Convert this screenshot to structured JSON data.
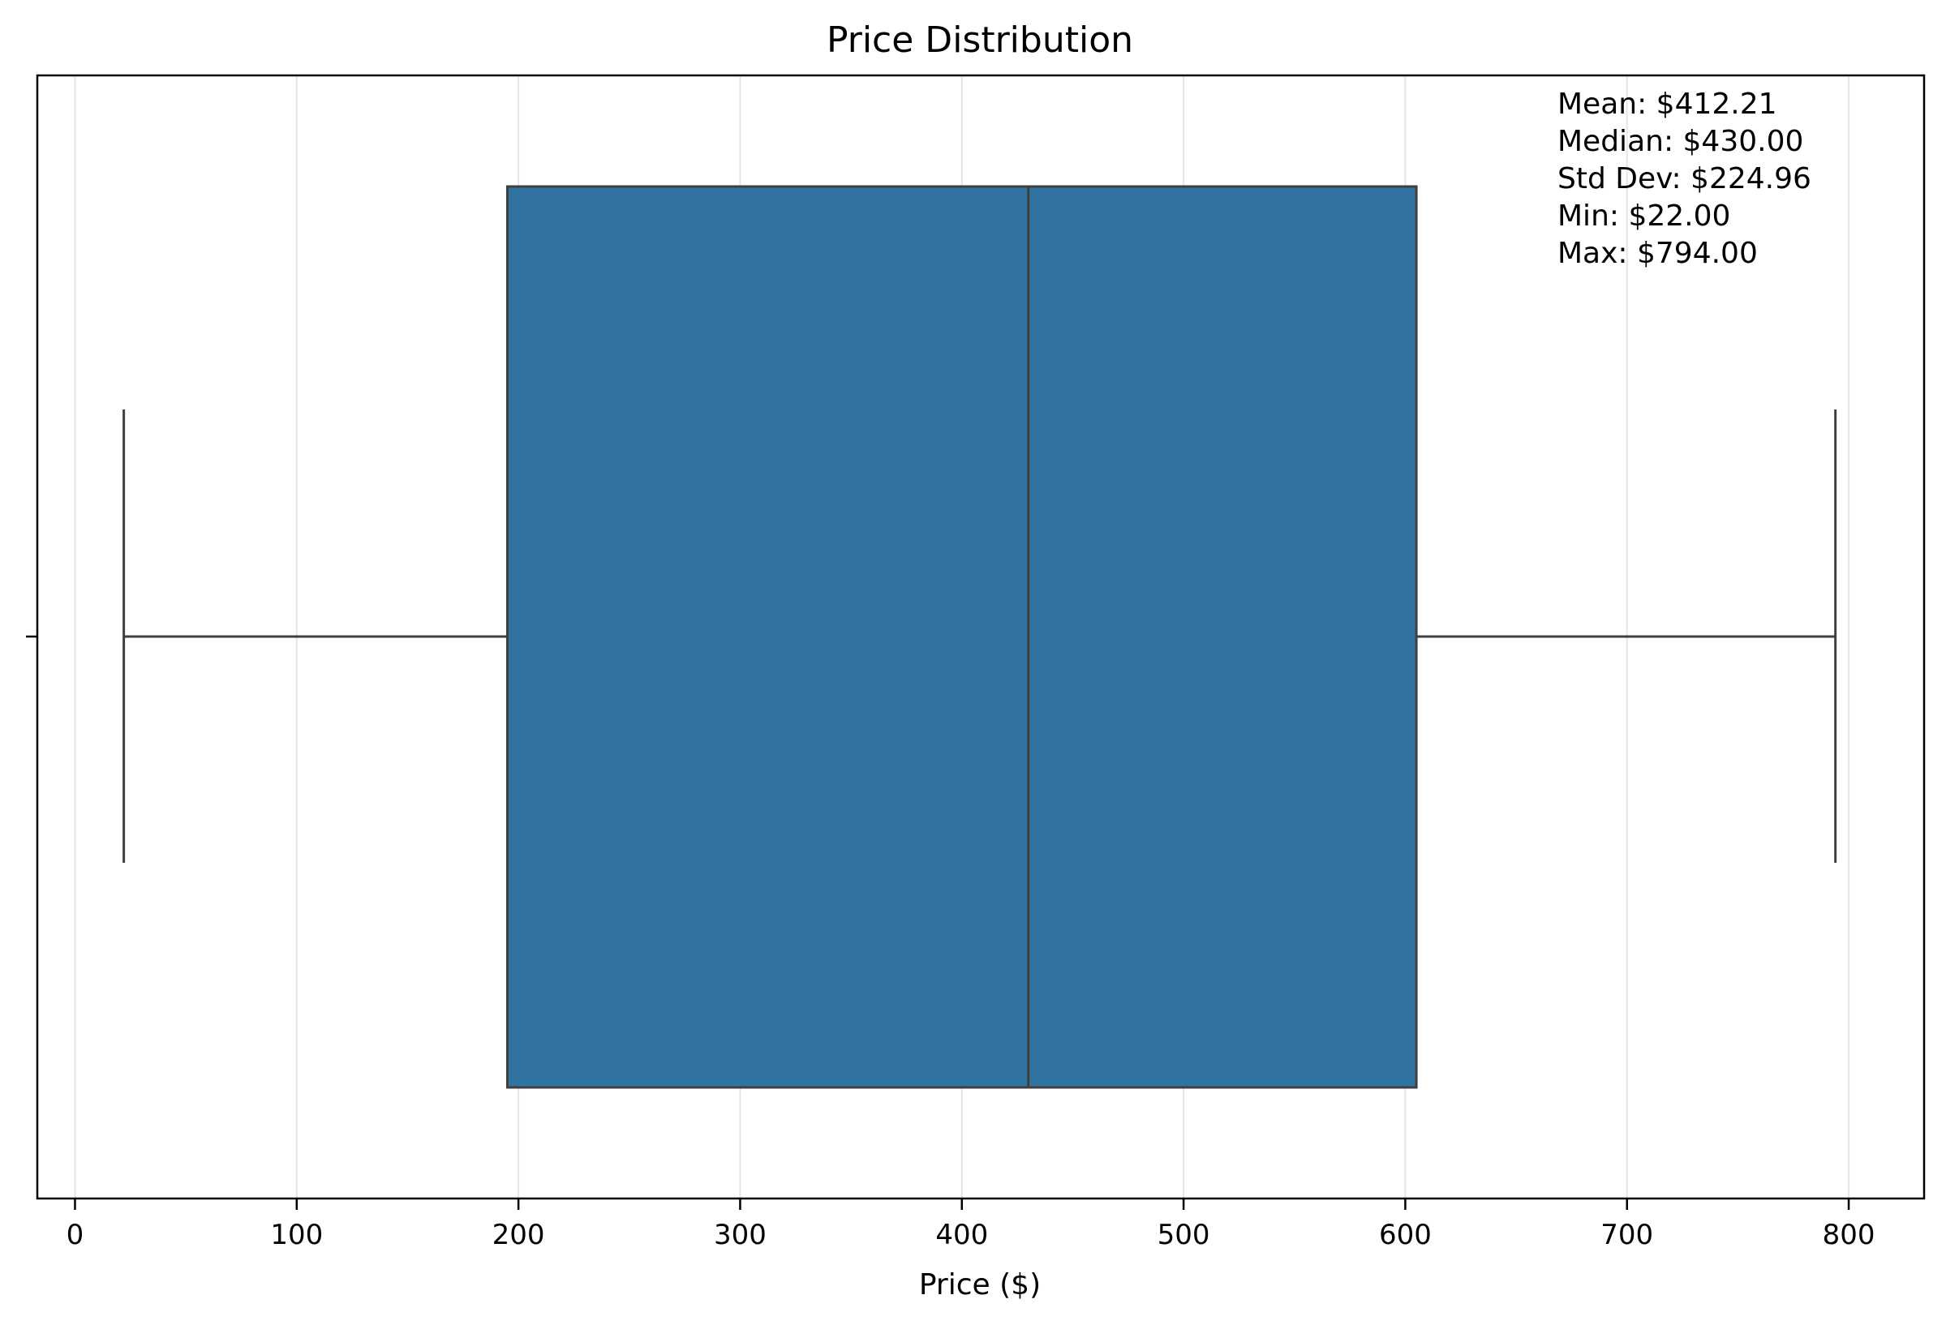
{
  "chart_data": {
    "type": "box",
    "title": "Price Distribution",
    "xlabel": "Price ($)",
    "ylabel": "",
    "xlim": [
      -17,
      834
    ],
    "xticks": [
      0,
      100,
      200,
      300,
      400,
      500,
      600,
      700,
      800
    ],
    "orientation": "horizontal",
    "grid": "vertical lines on",
    "box": {
      "whisker_low": 22,
      "q1": 195,
      "median": 430,
      "q3": 605,
      "whisker_high": 794
    },
    "stats": [
      "Mean: $412.21",
      "Median: $430.00",
      "Std Dev: $224.96",
      "Min: $22.00",
      "Max: $794.00"
    ],
    "box_color": "#3274a1",
    "line_color": "#3f3f3f"
  }
}
